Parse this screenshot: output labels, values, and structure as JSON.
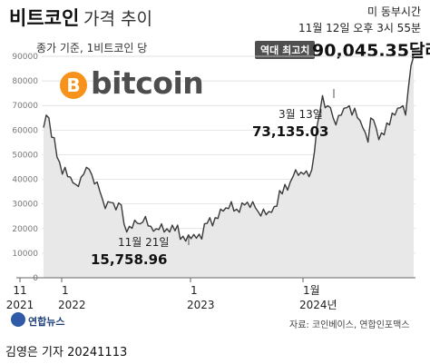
{
  "header": {
    "title_bold": "비트코인",
    "title_light": "가격 추이",
    "subtitle": "종가 기준, 1비트코인 당",
    "timezone_label": "미 동부시간",
    "timestamp": "11월 12일 오후 3시 55분",
    "high_badge": "역대 최고치",
    "high_value": "90,045.35달러"
  },
  "logo": {
    "symbol": "B",
    "text": "bitcoin",
    "symbol_color": "#f7931a"
  },
  "annotations": [
    {
      "date": "3월 13일",
      "value": "73,135.03"
    },
    {
      "date": "11월 21일",
      "value": "15,758.96"
    }
  ],
  "chart_data": {
    "type": "area",
    "line_color": "#3a3a3a",
    "fill_color": "#e8e8e8",
    "ylim": [
      0,
      90000
    ],
    "y_ticks": [
      0,
      10000,
      20000,
      30000,
      40000,
      50000,
      60000,
      70000,
      80000,
      90000
    ],
    "y_tick_labels": [
      "0",
      "10000",
      "20000",
      "30000",
      "40000",
      "50000",
      "60000",
      "70000",
      "80000",
      "90000"
    ],
    "x_tick_labels": [
      {
        "month": "11",
        "year": "2021"
      },
      {
        "month": "1",
        "year": "2022"
      },
      {
        "month": "1",
        "year": "2023"
      },
      {
        "month": "1월",
        "year": "2024년"
      }
    ],
    "grid": true,
    "series": [
      {
        "values": [
          61000,
          67000,
          64000,
          58000,
          56000,
          50000,
          46000,
          43000,
          44000,
          42000,
          40000,
          39500,
          37000,
          38000,
          40000,
          43000,
          44000,
          45000,
          41000,
          39000,
          38000,
          36000,
          31000,
          29000,
          30000,
          31500,
          29500,
          28500,
          29500,
          30500,
          21000,
          19500,
          20000,
          21000,
          22500,
          23000,
          21000,
          23500,
          24000,
          22000,
          20000,
          19800,
          19000,
          20500,
          21000,
          19500,
          19000,
          19500,
          20500,
          20000,
          20500,
          16500,
          16000,
          15758.96,
          16500,
          16800,
          16700,
          17000,
          16800,
          16600,
          21000,
          23000,
          23500,
          22000,
          23500,
          25000,
          27000,
          28000,
          27500,
          29000,
          30000,
          28000,
          27000,
          27500,
          29500,
          30500,
          29800,
          29500,
          30000,
          29300,
          26000,
          26000,
          27000,
          26500,
          26000,
          27500,
          28000,
          30000,
          34500,
          35000,
          37000,
          36500,
          38000,
          42000,
          43000,
          42500,
          42000,
          43000,
          42500,
          42000,
          43000,
          52000,
          61000,
          68000,
          73135.03,
          70000,
          69000,
          70000,
          64000,
          63000,
          65000,
          67000,
          68000,
          70000,
          69000,
          67000,
          68000,
          66000,
          63000,
          62000,
          58000,
          56000,
          64000,
          65000,
          60000,
          57000,
          58000,
          59000,
          62000,
          63000,
          66000,
          67000,
          68000,
          70000,
          69000,
          67000,
          76000,
          87000,
          90045.35
        ]
      }
    ]
  },
  "source": "자료: 코인베이스, 연합인포맥스",
  "agency": "연합뉴스",
  "credit": "김영은 기자  20241113"
}
